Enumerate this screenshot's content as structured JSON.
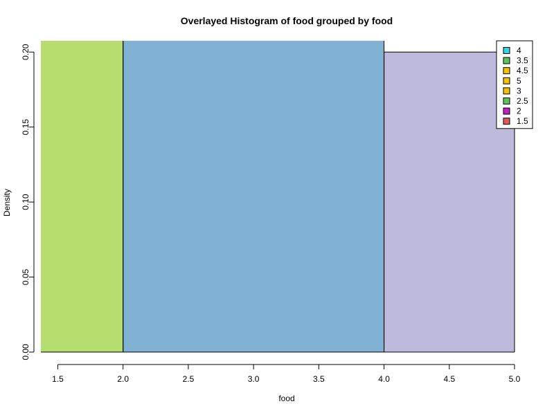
{
  "chart_data": {
    "type": "bar",
    "title": "Overlayed Histogram of food grouped by food",
    "xlabel": "food",
    "ylabel": "Density",
    "xlim": [
      1.37,
      5.0
    ],
    "ylim": [
      0,
      0.2075
    ],
    "x_ticks": [
      "1.5",
      "2.0",
      "2.5",
      "3.0",
      "3.5",
      "4.0",
      "4.5",
      "5.0"
    ],
    "y_ticks": [
      "0.00",
      "0.05",
      "0.10",
      "0.15",
      "0.20"
    ],
    "bars": [
      {
        "x0": 1.37,
        "x1": 2.0,
        "density": 0.2075,
        "color": "#b5de6f"
      },
      {
        "x0": 2.0,
        "x1": 4.0,
        "density": 0.2075,
        "color": "#80b1d3"
      },
      {
        "x0": 4.0,
        "x1": 5.0,
        "density": 0.2,
        "color": "#bebadb"
      }
    ],
    "legend": {
      "placement": "top-right",
      "entries": [
        {
          "label": "4",
          "color": "#33d6e0"
        },
        {
          "label": "3.5",
          "color": "#5cc55c"
        },
        {
          "label": "4.5",
          "color": "#f2c200"
        },
        {
          "label": "5",
          "color": "#f2c200"
        },
        {
          "label": "3",
          "color": "#f2c200"
        },
        {
          "label": "2.5",
          "color": "#5cc55c"
        },
        {
          "label": "2",
          "color": "#c21fc2"
        },
        {
          "label": "1.5",
          "color": "#e05a5a"
        }
      ]
    }
  }
}
